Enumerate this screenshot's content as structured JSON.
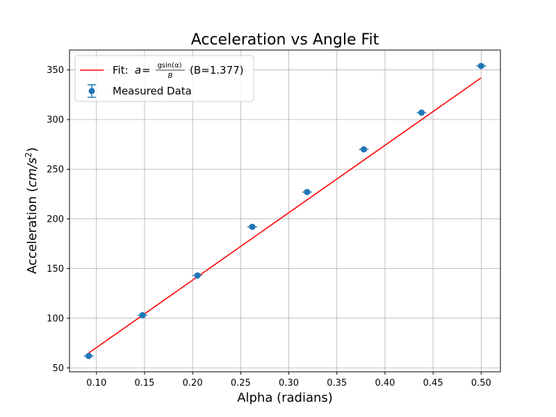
{
  "chart_data": {
    "type": "scatter",
    "title": "Acceleration vs Angle Fit",
    "xlabel": "Alpha (radians)",
    "ylabel_prefix": "Acceleration (",
    "ylabel_unit_base": "cm/s",
    "ylabel_unit_exp": "2",
    "ylabel_suffix": ")",
    "xlim": [
      0.072,
      0.52
    ],
    "ylim": [
      46,
      370
    ],
    "xticks": [
      0.1,
      0.15,
      0.2,
      0.25,
      0.3,
      0.35,
      0.4,
      0.45,
      0.5
    ],
    "xtick_labels": [
      "0.10",
      "0.15",
      "0.20",
      "0.25",
      "0.30",
      "0.35",
      "0.40",
      "0.45",
      "0.50"
    ],
    "yticks": [
      50,
      100,
      150,
      200,
      250,
      300,
      350
    ],
    "ytick_labels": [
      "50",
      "100",
      "150",
      "200",
      "250",
      "300",
      "350"
    ],
    "grid": true,
    "legend_position": "top-left",
    "series": [
      {
        "name": "Measured Data",
        "kind": "errorbar",
        "color": "#1f77b4",
        "x": [
          0.092,
          0.148,
          0.205,
          0.262,
          0.319,
          0.378,
          0.438,
          0.5
        ],
        "y": [
          62,
          103,
          143,
          192,
          227,
          270,
          307,
          354
        ],
        "xerr": 0.005,
        "yerr": 1.5
      },
      {
        "kind": "line",
        "color": "#ff0000",
        "x": [
          0.092,
          0.5
        ],
        "y": [
          65,
          342
        ]
      }
    ],
    "legend": {
      "fit_prefix": "Fit: ",
      "fit_a": "a",
      "fit_eq": " = ",
      "fit_num": "gsin(α)",
      "fit_den": "B",
      "fit_param": "(B=1.377)",
      "data_label": "Measured Data"
    }
  }
}
